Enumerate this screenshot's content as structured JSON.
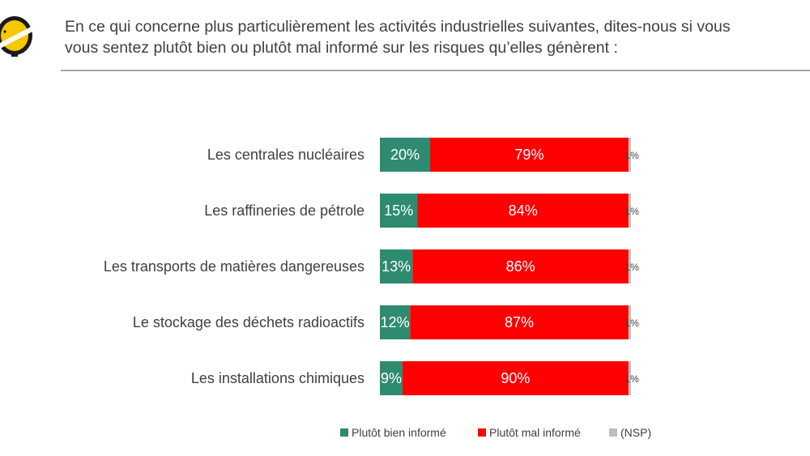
{
  "header": {
    "question_line1": "En ce qui concerne plus particulièrement les activités industrielles suivantes, dites-nous si vous",
    "question_line2": "vous sentez plutôt bien ou plutôt mal informé sur les risques qu’elles génèrent :"
  },
  "colors": {
    "bien": "#2e8b6f",
    "mal": "#ff0000",
    "nsp": "#bfbfbf",
    "logo_yellow": "#f5c800",
    "logo_dark": "#1a1a1a"
  },
  "chart_data": {
    "type": "bar",
    "orientation": "horizontal",
    "stacked": true,
    "title": "",
    "xlabel": "",
    "ylabel": "",
    "xlim": [
      0,
      100
    ],
    "unit": "%",
    "legend_position": "bottom",
    "categories": [
      "Les centrales nucléaires",
      "Les raffineries de pétrole",
      "Les transports de matières dangereuses",
      "Le stockage des déchets radioactifs",
      "Les installations chimiques"
    ],
    "series": [
      {
        "name": "Plutôt bien informé",
        "values": [
          20,
          15,
          13,
          12,
          9
        ],
        "labels": [
          "20%",
          "15%",
          "13%",
          "12%",
          "9%"
        ]
      },
      {
        "name": "Plutôt mal informé",
        "values": [
          79,
          84,
          86,
          87,
          90
        ],
        "labels": [
          "79%",
          "84%",
          "86%",
          "87%",
          "90%"
        ]
      },
      {
        "name": "(NSP)",
        "values": [
          1,
          1,
          1,
          1,
          1
        ],
        "labels": [
          "1%",
          "1%",
          "1%",
          "1%",
          "1%"
        ]
      }
    ]
  }
}
